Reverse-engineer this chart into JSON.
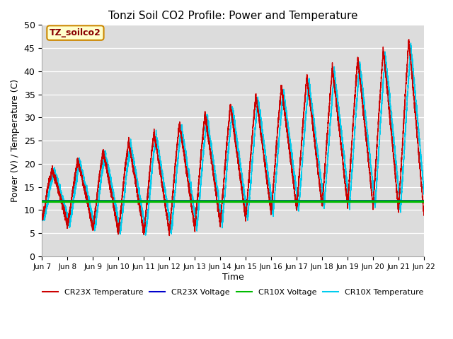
{
  "title": "Tonzi Soil CO2 Profile: Power and Temperature",
  "xlabel": "Time",
  "ylabel": "Power (V) / Temperature (C)",
  "ylim": [
    0,
    50
  ],
  "xlim": [
    0,
    15
  ],
  "plot_bg": "#dcdcdc",
  "annotation_text": "TZ_soilco2",
  "annotation_bg": "#ffffcc",
  "annotation_border": "#cc8800",
  "cr23x_temp_color": "#cc0000",
  "cr23x_volt_color": "#0000cc",
  "cr10x_volt_color": "#00bb00",
  "cr10x_temp_color": "#00ccee",
  "x_tick_labels": [
    "Jun 7",
    "Jun 8",
    "Jun 9",
    "Jun 10",
    "Jun 11",
    "Jun 12",
    "Jun 13",
    "Jun 14",
    "Jun 15",
    "Jun 16",
    "Jun 17",
    "Jun 18",
    "Jun 19",
    "Jun 20",
    "Jun 21",
    "Jun 22"
  ],
  "cr23x_volt_value": 12.0,
  "cr10x_volt_value": 11.85
}
